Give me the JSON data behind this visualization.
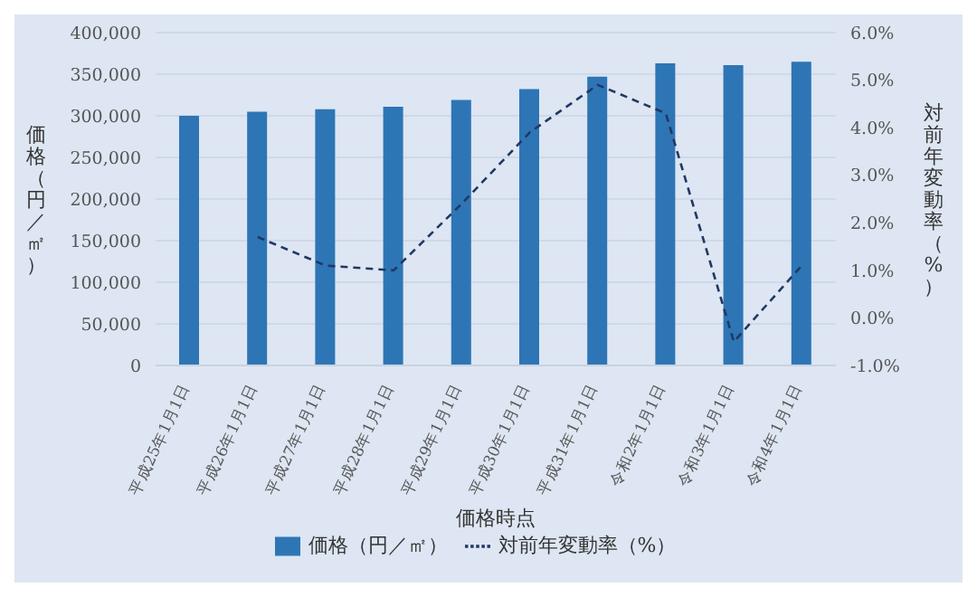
{
  "chart_data": {
    "type": "bar",
    "xlabel": "価格時点",
    "ylabel": "価格（円／㎡）",
    "y2label": "対前年変動率（%）",
    "categories": [
      "平成25年1月1日",
      "平成26年1月1日",
      "平成27年1月1日",
      "平成28年1月1日",
      "平成29年1月1日",
      "平成30年1月1日",
      "平成31年1月1日",
      "令和2年1月1日",
      "令和3年1月1日",
      "令和4年1月1日"
    ],
    "series": [
      {
        "name": "価格（円／㎡）",
        "color": "#2e75b6",
        "values": [
          300000,
          305000,
          308000,
          311000,
          319000,
          332000,
          347000,
          363000,
          361000,
          365000
        ]
      },
      {
        "name": "対前年変動率（%）",
        "type": "line",
        "axis": "y2",
        "color": "#203864",
        "line_style": "dashed",
        "marker": "none",
        "values": [
          null,
          1.7,
          1.1,
          1.0,
          2.4,
          3.9,
          4.9,
          4.3,
          -0.5,
          1.1
        ]
      }
    ],
    "ylim": [
      0,
      400000
    ],
    "yticks": [
      {
        "value": 0,
        "label": "0"
      },
      {
        "value": 50000,
        "label": "50,000"
      },
      {
        "value": 100000,
        "label": "100,000"
      },
      {
        "value": 150000,
        "label": "150,000"
      },
      {
        "value": 200000,
        "label": "200,000"
      },
      {
        "value": 250000,
        "label": "250,000"
      },
      {
        "value": 300000,
        "label": "300,000"
      },
      {
        "value": 350000,
        "label": "350,000"
      },
      {
        "value": 400000,
        "label": "400,000"
      }
    ],
    "y2lim": [
      -1,
      6
    ],
    "y2ticks": [
      {
        "value": -1,
        "label": "-1.0%"
      },
      {
        "value": 0,
        "label": "0.0%"
      },
      {
        "value": 1,
        "label": "1.0%"
      },
      {
        "value": 2,
        "label": "2.0%"
      },
      {
        "value": 3,
        "label": "3.0%"
      },
      {
        "value": 4,
        "label": "4.0%"
      },
      {
        "value": 5,
        "label": "5.0%"
      },
      {
        "value": 6,
        "label": "6.0%"
      }
    ],
    "grid": "y",
    "legend": "bottom"
  }
}
